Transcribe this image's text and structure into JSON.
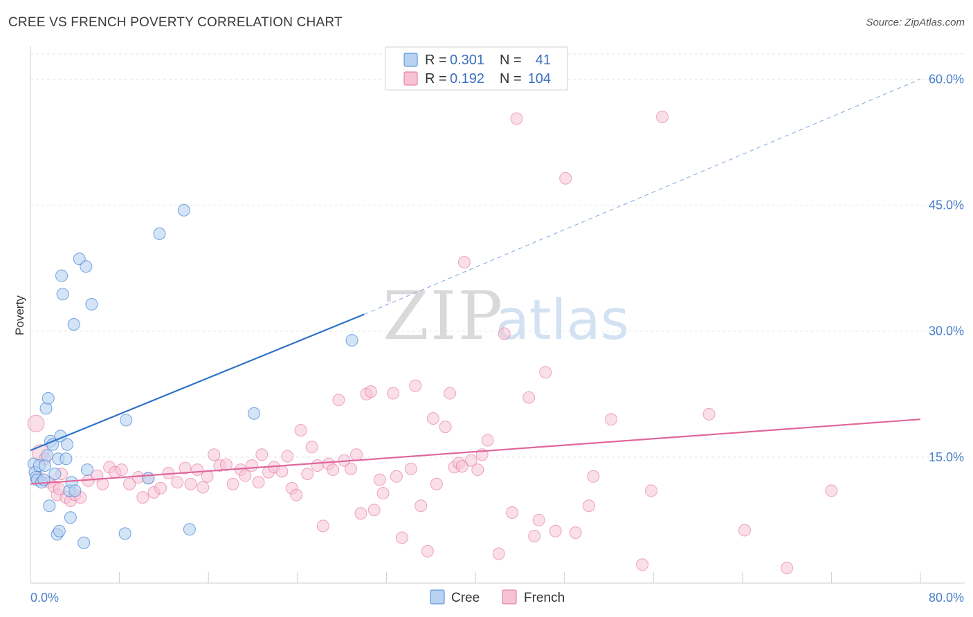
{
  "header": {
    "title": "CREE VS FRENCH POVERTY CORRELATION CHART",
    "source": "Source: ZipAtlas.com"
  },
  "watermark": {
    "part1": "ZIP",
    "part2": "atlas"
  },
  "legend": {
    "rows": [
      {
        "r_label": "R =",
        "r_value": "0.301",
        "n_label": "N =",
        "n_value": "41"
      },
      {
        "r_label": "R =",
        "r_value": "0.192",
        "n_label": "N =",
        "n_value": "104"
      }
    ]
  },
  "bottom_legend": {
    "cree": "Cree",
    "french": "French"
  },
  "colors": {
    "cree": "#4a86d6",
    "cree_fill": "#b8d2f2",
    "french": "#e36f9b",
    "french_fill": "#f6c3d5",
    "tick": "#4a7fc9"
  },
  "chart_data": {
    "type": "scatter",
    "title": "CREE VS FRENCH POVERTY CORRELATION CHART",
    "ylabel": "Poverty",
    "xlim": [
      0,
      80
    ],
    "ylim": [
      0,
      63
    ],
    "x_tick_labels": [
      "0.0%",
      "80.0%"
    ],
    "y_ticks": [
      15,
      30,
      45,
      60
    ],
    "y_tick_labels": [
      "15.0%",
      "30.0%",
      "45.0%",
      "60.0%"
    ],
    "grid": true,
    "legend_position": "top-center",
    "series": [
      {
        "name": "Cree",
        "r": 0.301,
        "n": 41,
        "trend": {
          "x0": 0,
          "y0": 15.8,
          "x1": 30,
          "y1": 32.0,
          "dashed_to": [
            80,
            60.0
          ]
        },
        "points": [
          [
            0.3,
            14.2
          ],
          [
            0.4,
            13.2
          ],
          [
            0.5,
            12.6
          ],
          [
            0.6,
            12.3
          ],
          [
            0.8,
            14.0
          ],
          [
            1.0,
            12.0
          ],
          [
            1.2,
            12.3
          ],
          [
            1.3,
            14.0
          ],
          [
            1.4,
            20.8
          ],
          [
            1.6,
            22.0
          ],
          [
            1.7,
            9.2
          ],
          [
            1.8,
            16.9
          ],
          [
            2.0,
            16.5
          ],
          [
            2.2,
            13.0
          ],
          [
            2.4,
            5.8
          ],
          [
            2.5,
            14.8
          ],
          [
            2.6,
            6.2
          ],
          [
            2.7,
            17.5
          ],
          [
            2.8,
            36.6
          ],
          [
            2.9,
            34.4
          ],
          [
            3.2,
            14.8
          ],
          [
            3.3,
            16.5
          ],
          [
            3.5,
            11.0
          ],
          [
            3.6,
            7.8
          ],
          [
            3.7,
            12.0
          ],
          [
            3.9,
            30.8
          ],
          [
            4.4,
            38.6
          ],
          [
            4.8,
            4.8
          ],
          [
            5.0,
            37.7
          ],
          [
            5.1,
            13.5
          ],
          [
            5.5,
            33.2
          ],
          [
            8.5,
            5.9
          ],
          [
            8.6,
            19.4
          ],
          [
            10.6,
            12.5
          ],
          [
            11.6,
            41.6
          ],
          [
            13.8,
            44.4
          ],
          [
            14.3,
            6.4
          ],
          [
            20.1,
            20.2
          ],
          [
            28.9,
            28.9
          ],
          [
            4.0,
            11.0
          ],
          [
            1.5,
            15.2
          ]
        ]
      },
      {
        "name": "French",
        "r": 0.192,
        "n": 104,
        "trend": {
          "x0": 0,
          "y0": 11.8,
          "x1": 80,
          "y1": 19.5
        },
        "points": [
          [
            0.5,
            19.0
          ],
          [
            0.9,
            15.5
          ],
          [
            1.3,
            14.8
          ],
          [
            1.7,
            12.0
          ],
          [
            2.1,
            11.5
          ],
          [
            2.4,
            10.5
          ],
          [
            2.8,
            13.0
          ],
          [
            3.2,
            10.2
          ],
          [
            3.6,
            9.8
          ],
          [
            4.0,
            10.5
          ],
          [
            4.5,
            10.2
          ],
          [
            5.2,
            12.2
          ],
          [
            6.0,
            12.8
          ],
          [
            6.5,
            11.8
          ],
          [
            7.1,
            13.8
          ],
          [
            7.6,
            13.2
          ],
          [
            8.2,
            13.5
          ],
          [
            8.9,
            11.8
          ],
          [
            9.7,
            12.6
          ],
          [
            10.1,
            10.2
          ],
          [
            10.6,
            12.5
          ],
          [
            11.1,
            10.8
          ],
          [
            11.7,
            11.3
          ],
          [
            12.4,
            13.1
          ],
          [
            13.2,
            12.0
          ],
          [
            13.9,
            13.7
          ],
          [
            14.4,
            11.8
          ],
          [
            15.0,
            13.5
          ],
          [
            15.5,
            11.4
          ],
          [
            15.9,
            12.7
          ],
          [
            16.5,
            15.3
          ],
          [
            17.0,
            14.0
          ],
          [
            17.6,
            14.1
          ],
          [
            18.2,
            11.8
          ],
          [
            18.9,
            13.5
          ],
          [
            19.3,
            12.8
          ],
          [
            19.9,
            14.0
          ],
          [
            20.5,
            12.0
          ],
          [
            20.8,
            15.3
          ],
          [
            21.4,
            13.2
          ],
          [
            21.9,
            13.8
          ],
          [
            22.6,
            13.3
          ],
          [
            23.1,
            15.1
          ],
          [
            23.5,
            11.3
          ],
          [
            23.9,
            10.5
          ],
          [
            24.3,
            18.2
          ],
          [
            24.9,
            13.0
          ],
          [
            25.3,
            16.2
          ],
          [
            25.8,
            14.0
          ],
          [
            26.8,
            14.2
          ],
          [
            27.2,
            13.5
          ],
          [
            27.7,
            21.8
          ],
          [
            28.2,
            14.6
          ],
          [
            28.8,
            13.6
          ],
          [
            29.3,
            15.3
          ],
          [
            29.7,
            8.3
          ],
          [
            30.2,
            22.5
          ],
          [
            30.6,
            22.8
          ],
          [
            30.9,
            8.7
          ],
          [
            31.4,
            12.3
          ],
          [
            31.7,
            10.7
          ],
          [
            32.6,
            22.6
          ],
          [
            32.9,
            12.7
          ],
          [
            33.4,
            5.4
          ],
          [
            34.2,
            13.6
          ],
          [
            34.6,
            23.5
          ],
          [
            35.1,
            9.2
          ],
          [
            35.7,
            3.8
          ],
          [
            36.2,
            19.6
          ],
          [
            36.5,
            11.8
          ],
          [
            37.3,
            18.6
          ],
          [
            37.7,
            22.6
          ],
          [
            38.1,
            13.8
          ],
          [
            38.5,
            14.3
          ],
          [
            39.0,
            38.2
          ],
          [
            39.6,
            14.6
          ],
          [
            40.2,
            13.5
          ],
          [
            40.6,
            15.3
          ],
          [
            41.1,
            17.0
          ],
          [
            42.1,
            3.5
          ],
          [
            42.6,
            29.7
          ],
          [
            43.3,
            8.4
          ],
          [
            43.7,
            55.3
          ],
          [
            44.8,
            22.1
          ],
          [
            45.3,
            5.6
          ],
          [
            45.7,
            7.5
          ],
          [
            46.3,
            25.1
          ],
          [
            47.2,
            6.2
          ],
          [
            48.1,
            48.2
          ],
          [
            49.0,
            6.0
          ],
          [
            50.2,
            9.2
          ],
          [
            50.6,
            12.7
          ],
          [
            52.2,
            19.5
          ],
          [
            55.0,
            2.2
          ],
          [
            55.8,
            11.0
          ],
          [
            56.8,
            55.5
          ],
          [
            61.0,
            20.1
          ],
          [
            64.2,
            6.3
          ],
          [
            68.0,
            1.8
          ],
          [
            72.0,
            11.0
          ],
          [
            38.8,
            13.9
          ],
          [
            26.3,
            6.8
          ],
          [
            2.6,
            11.2
          ],
          [
            0.7,
            12.6
          ]
        ]
      }
    ]
  }
}
